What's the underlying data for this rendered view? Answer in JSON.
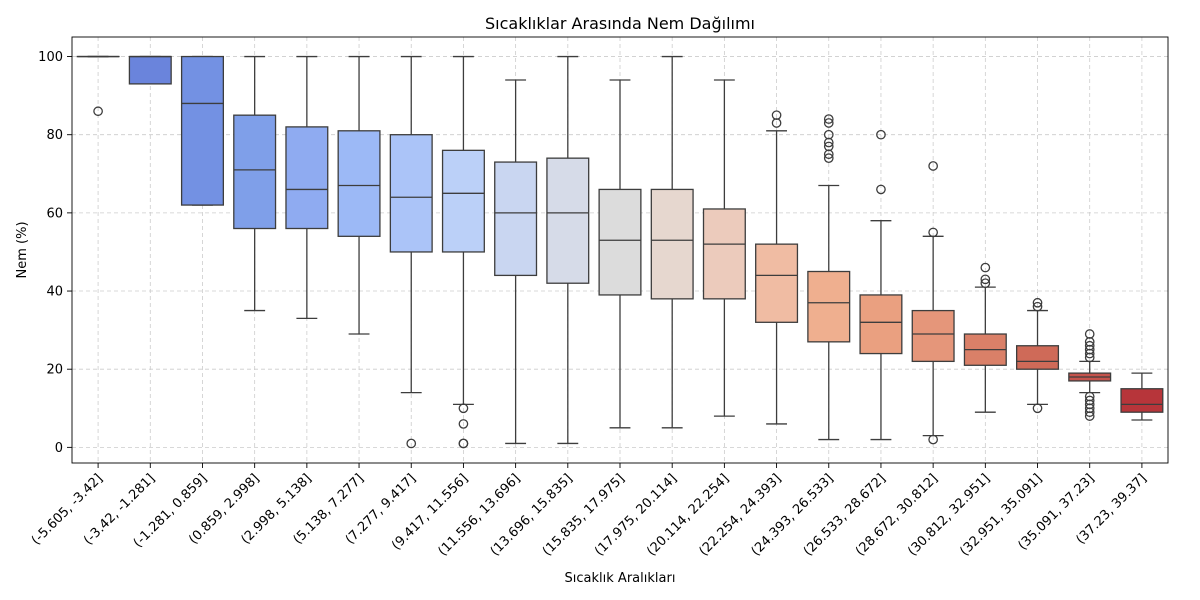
{
  "chart_data": {
    "type": "box",
    "title": "Sıcaklıklar Arasında Nem Dağılımı",
    "xlabel": "Sıcaklık Aralıkları",
    "ylabel": "Nem (%)",
    "ylim": [
      -4,
      105
    ],
    "yticks": [
      0,
      20,
      40,
      60,
      80,
      100
    ],
    "grid": true,
    "categories": [
      "(-5.605, -3.42]",
      "(-3.42, -1.281]",
      "(-1.281, 0.859]",
      "(0.859, 2.998]",
      "(2.998, 5.138]",
      "(5.138, 7.277]",
      "(7.277, 9.417]",
      "(9.417, 11.556]",
      "(11.556, 13.696]",
      "(13.696, 15.835]",
      "(15.835, 17.975]",
      "(17.975, 20.114]",
      "(20.114, 22.254]",
      "(22.254, 24.393]",
      "(24.393, 26.533]",
      "(26.533, 28.672]",
      "(28.672, 30.812]",
      "(30.812, 32.951]",
      "(32.951, 35.091]",
      "(35.091, 37.23]",
      "(37.23, 39.37]"
    ],
    "boxes": [
      {
        "whislo": 100,
        "q1": 100,
        "med": 100,
        "q3": 100,
        "whishi": 100,
        "fliers": [
          86
        ]
      },
      {
        "whislo": 93,
        "q1": 93,
        "med": 100,
        "q3": 100,
        "whishi": 100,
        "fliers": []
      },
      {
        "whislo": 62,
        "q1": 62,
        "med": 88,
        "q3": 100,
        "whishi": 100,
        "fliers": []
      },
      {
        "whislo": 35,
        "q1": 56,
        "med": 71,
        "q3": 85,
        "whishi": 100,
        "fliers": []
      },
      {
        "whislo": 33,
        "q1": 56,
        "med": 66,
        "q3": 82,
        "whishi": 100,
        "fliers": []
      },
      {
        "whislo": 29,
        "q1": 54,
        "med": 67,
        "q3": 81,
        "whishi": 100,
        "fliers": []
      },
      {
        "whislo": 14,
        "q1": 50,
        "med": 64,
        "q3": 80,
        "whishi": 100,
        "fliers": [
          1
        ]
      },
      {
        "whislo": 11,
        "q1": 50,
        "med": 65,
        "q3": 76,
        "whishi": 100,
        "fliers": [
          10,
          6,
          1,
          1
        ]
      },
      {
        "whislo": 1,
        "q1": 44,
        "med": 60,
        "q3": 73,
        "whishi": 94,
        "fliers": []
      },
      {
        "whislo": 1,
        "q1": 42,
        "med": 60,
        "q3": 74,
        "whishi": 100,
        "fliers": []
      },
      {
        "whislo": 5,
        "q1": 39,
        "med": 53,
        "q3": 66,
        "whishi": 94,
        "fliers": []
      },
      {
        "whislo": 5,
        "q1": 38,
        "med": 53,
        "q3": 66,
        "whishi": 100,
        "fliers": []
      },
      {
        "whislo": 8,
        "q1": 38,
        "med": 52,
        "q3": 61,
        "whishi": 94,
        "fliers": []
      },
      {
        "whislo": 6,
        "q1": 32,
        "med": 44,
        "q3": 52,
        "whishi": 81,
        "fliers": [
          83,
          85
        ]
      },
      {
        "whislo": 2,
        "q1": 27,
        "med": 37,
        "q3": 45,
        "whishi": 67,
        "fliers": [
          74,
          75,
          77,
          78,
          80,
          83,
          84
        ]
      },
      {
        "whislo": 2,
        "q1": 24,
        "med": 32,
        "q3": 39,
        "whishi": 58,
        "fliers": [
          66,
          80
        ]
      },
      {
        "whislo": 3,
        "q1": 22,
        "med": 29,
        "q3": 35,
        "whishi": 54,
        "fliers": [
          2,
          55,
          72
        ]
      },
      {
        "whislo": 9,
        "q1": 21,
        "med": 25,
        "q3": 29,
        "whishi": 41,
        "fliers": [
          42,
          43,
          46
        ]
      },
      {
        "whislo": 11,
        "q1": 20,
        "med": 22,
        "q3": 26,
        "whishi": 35,
        "fliers": [
          10,
          36,
          37
        ]
      },
      {
        "whislo": 14,
        "q1": 17,
        "med": 18,
        "q3": 19,
        "whishi": 22,
        "fliers": [
          8,
          9,
          10,
          11,
          12,
          13,
          23,
          24,
          25,
          26,
          27,
          29
        ]
      },
      {
        "whislo": 7,
        "q1": 9,
        "med": 11,
        "q3": 15,
        "whishi": 19,
        "fliers": []
      }
    ],
    "colors": [
      "#6480d8",
      "#6a84dc",
      "#7391e3",
      "#7f9fe9",
      "#8fabf1",
      "#9cb9f6",
      "#abc4f8",
      "#bbd0f8",
      "#c9d6f1",
      "#d6dbe8",
      "#dcdcdc",
      "#e6d7cf",
      "#eccbbc",
      "#f0bca3",
      "#efaf8f",
      "#eaa080",
      "#e5967a",
      "#da8068",
      "#cf6a58",
      "#c5534c",
      "#b7353a"
    ]
  }
}
